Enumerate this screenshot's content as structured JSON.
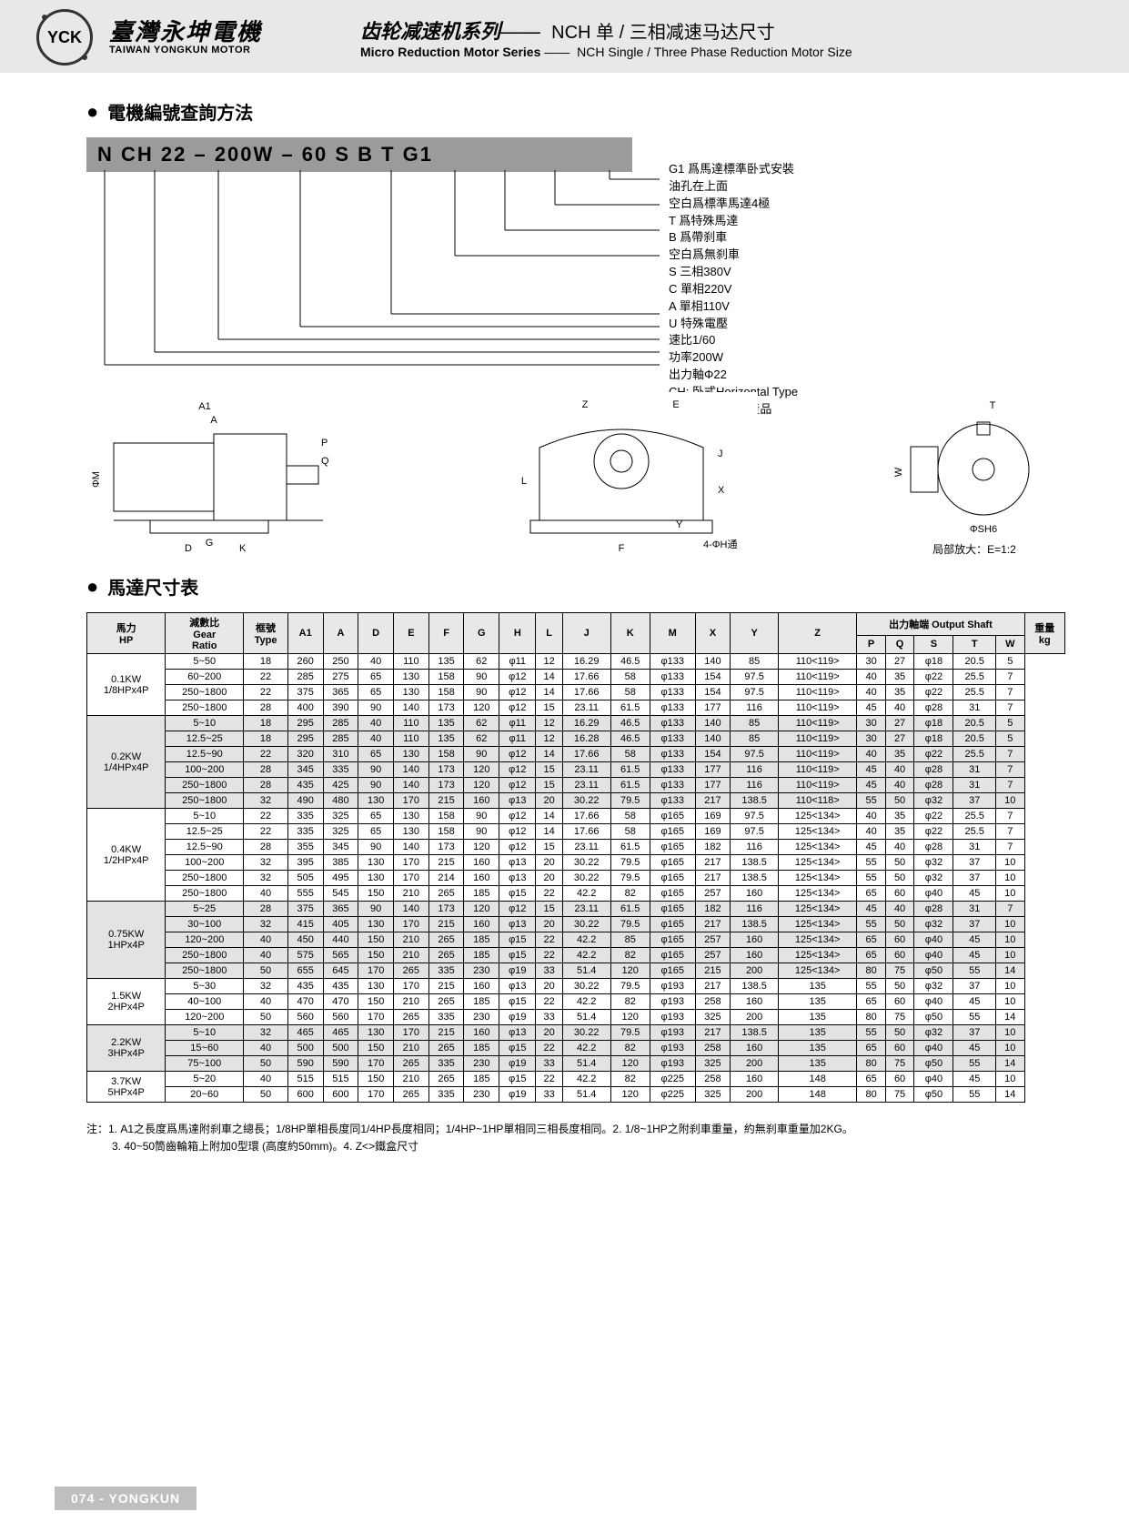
{
  "header": {
    "logo_text": "YCK",
    "company_cn": "臺灣永坤電機",
    "company_en": "TAIWAN YONGKUN MOTOR",
    "title_cn_main": "齿轮减速机系列",
    "title_cn_sub": "NCH 单 / 三相减速马达尺寸",
    "title_en_main": "Micro Reduction Motor Series",
    "title_en_sub": "NCH Single / Three Phase Reduction Motor Size"
  },
  "section1": {
    "heading": "電機編號查詢方法",
    "codebar": "N    CH   22 – 200W – 60    S    B    T    G1",
    "decodes": [
      "G1 爲馬達標準卧式安裝",
      "油孔在上面",
      "空白爲標準馬達4極",
      "T 爲特殊馬達",
      "B 爲帶刹車",
      "空白爲無刹車",
      "S 三相380V",
      "C 單相220V",
      "A 單相110V",
      "U 特殊電壓",
      "速比1/60",
      "功率200W",
      "出力軸Φ22",
      "CH: 卧式Horizontal Type",
      "標有N的爲新款産品"
    ]
  },
  "drawings": {
    "dim_labels_1": [
      "A1",
      "A",
      "P",
      "Q",
      "ΦM",
      "D",
      "K",
      "G"
    ],
    "dim_labels_2": [
      "Z",
      "E",
      "J",
      "X",
      "L",
      "Y",
      "F",
      "4-ΦH通"
    ],
    "dim_labels_3": [
      "T",
      "W",
      "ΦSH6"
    ],
    "caption_3": "局部放大：E=1:2"
  },
  "section2": {
    "heading": "馬達尺寸表"
  },
  "table": {
    "head_groups": {
      "hp": "馬力\nHP",
      "ratio": "減數比\nGear\nRatio",
      "type": "框號\nType",
      "output": "出力軸端 Output Shaft",
      "weight": "重量\nkg"
    },
    "cols": [
      "A1",
      "A",
      "D",
      "E",
      "F",
      "G",
      "H",
      "L",
      "J",
      "K",
      "M",
      "X",
      "Y",
      "Z",
      "P",
      "Q",
      "S",
      "T",
      "W"
    ],
    "groups": [
      {
        "hp": "0.1KW\n1/8HPx4P",
        "rows": [
          {
            "ratio": "5~50",
            "type": "18",
            "v": [
              "260",
              "250",
              "40",
              "110",
              "135",
              "62",
              "φ11",
              "12",
              "16.29",
              "46.5",
              "φ133",
              "140",
              "85",
              "110<119>",
              "30",
              "27",
              "φ18",
              "20.5",
              "5"
            ]
          },
          {
            "ratio": "60~200",
            "type": "22",
            "v": [
              "285",
              "275",
              "65",
              "130",
              "158",
              "90",
              "φ12",
              "14",
              "17.66",
              "58",
              "φ133",
              "154",
              "97.5",
              "110<119>",
              "40",
              "35",
              "φ22",
              "25.5",
              "7"
            ]
          },
          {
            "ratio": "250~1800",
            "type": "22",
            "v": [
              "375",
              "365",
              "65",
              "130",
              "158",
              "90",
              "φ12",
              "14",
              "17.66",
              "58",
              "φ133",
              "154",
              "97.5",
              "110<119>",
              "40",
              "35",
              "φ22",
              "25.5",
              "7"
            ]
          },
          {
            "ratio": "250~1800",
            "type": "28",
            "v": [
              "400",
              "390",
              "90",
              "140",
              "173",
              "120",
              "φ12",
              "15",
              "23.11",
              "61.5",
              "φ133",
              "177",
              "116",
              "110<119>",
              "45",
              "40",
              "φ28",
              "31",
              "7"
            ]
          }
        ]
      },
      {
        "hp": "0.2KW\n1/4HPx4P",
        "shade": true,
        "rows": [
          {
            "ratio": "5~10",
            "type": "18",
            "v": [
              "295",
              "285",
              "40",
              "110",
              "135",
              "62",
              "φ11",
              "12",
              "16.29",
              "46.5",
              "φ133",
              "140",
              "85",
              "110<119>",
              "30",
              "27",
              "φ18",
              "20.5",
              "5"
            ]
          },
          {
            "ratio": "12.5~25",
            "type": "18",
            "v": [
              "295",
              "285",
              "40",
              "110",
              "135",
              "62",
              "φ11",
              "12",
              "16.28",
              "46.5",
              "φ133",
              "140",
              "85",
              "110<119>",
              "30",
              "27",
              "φ18",
              "20.5",
              "5"
            ]
          },
          {
            "ratio": "12.5~90",
            "type": "22",
            "v": [
              "320",
              "310",
              "65",
              "130",
              "158",
              "90",
              "φ12",
              "14",
              "17.66",
              "58",
              "φ133",
              "154",
              "97.5",
              "110<119>",
              "40",
              "35",
              "φ22",
              "25.5",
              "7"
            ]
          },
          {
            "ratio": "100~200",
            "type": "28",
            "v": [
              "345",
              "335",
              "90",
              "140",
              "173",
              "120",
              "φ12",
              "15",
              "23.11",
              "61.5",
              "φ133",
              "177",
              "116",
              "110<119>",
              "45",
              "40",
              "φ28",
              "31",
              "7"
            ]
          },
          {
            "ratio": "250~1800",
            "type": "28",
            "v": [
              "435",
              "425",
              "90",
              "140",
              "173",
              "120",
              "φ12",
              "15",
              "23.11",
              "61.5",
              "φ133",
              "177",
              "116",
              "110<119>",
              "45",
              "40",
              "φ28",
              "31",
              "7"
            ]
          },
          {
            "ratio": "250~1800",
            "type": "32",
            "v": [
              "490",
              "480",
              "130",
              "170",
              "215",
              "160",
              "φ13",
              "20",
              "30.22",
              "79.5",
              "φ133",
              "217",
              "138.5",
              "110<118>",
              "55",
              "50",
              "φ32",
              "37",
              "10"
            ]
          }
        ]
      },
      {
        "hp": "0.4KW\n1/2HPx4P",
        "rows": [
          {
            "ratio": "5~10",
            "type": "22",
            "v": [
              "335",
              "325",
              "65",
              "130",
              "158",
              "90",
              "φ12",
              "14",
              "17.66",
              "58",
              "φ165",
              "169",
              "97.5",
              "125<134>",
              "40",
              "35",
              "φ22",
              "25.5",
              "7"
            ]
          },
          {
            "ratio": "12.5~25",
            "type": "22",
            "v": [
              "335",
              "325",
              "65",
              "130",
              "158",
              "90",
              "φ12",
              "14",
              "17.66",
              "58",
              "φ165",
              "169",
              "97.5",
              "125<134>",
              "40",
              "35",
              "φ22",
              "25.5",
              "7"
            ]
          },
          {
            "ratio": "12.5~90",
            "type": "28",
            "v": [
              "355",
              "345",
              "90",
              "140",
              "173",
              "120",
              "φ12",
              "15",
              "23.11",
              "61.5",
              "φ165",
              "182",
              "116",
              "125<134>",
              "45",
              "40",
              "φ28",
              "31",
              "7"
            ]
          },
          {
            "ratio": "100~200",
            "type": "32",
            "v": [
              "395",
              "385",
              "130",
              "170",
              "215",
              "160",
              "φ13",
              "20",
              "30.22",
              "79.5",
              "φ165",
              "217",
              "138.5",
              "125<134>",
              "55",
              "50",
              "φ32",
              "37",
              "10"
            ]
          },
          {
            "ratio": "250~1800",
            "type": "32",
            "v": [
              "505",
              "495",
              "130",
              "170",
              "214",
              "160",
              "φ13",
              "20",
              "30.22",
              "79.5",
              "φ165",
              "217",
              "138.5",
              "125<134>",
              "55",
              "50",
              "φ32",
              "37",
              "10"
            ]
          },
          {
            "ratio": "250~1800",
            "type": "40",
            "v": [
              "555",
              "545",
              "150",
              "210",
              "265",
              "185",
              "φ15",
              "22",
              "42.2",
              "82",
              "φ165",
              "257",
              "160",
              "125<134>",
              "65",
              "60",
              "φ40",
              "45",
              "10"
            ]
          }
        ]
      },
      {
        "hp": "0.75KW\n1HPx4P",
        "shade": true,
        "rows": [
          {
            "ratio": "5~25",
            "type": "28",
            "v": [
              "375",
              "365",
              "90",
              "140",
              "173",
              "120",
              "φ12",
              "15",
              "23.11",
              "61.5",
              "φ165",
              "182",
              "116",
              "125<134>",
              "45",
              "40",
              "φ28",
              "31",
              "7"
            ]
          },
          {
            "ratio": "30~100",
            "type": "32",
            "v": [
              "415",
              "405",
              "130",
              "170",
              "215",
              "160",
              "φ13",
              "20",
              "30.22",
              "79.5",
              "φ165",
              "217",
              "138.5",
              "125<134>",
              "55",
              "50",
              "φ32",
              "37",
              "10"
            ]
          },
          {
            "ratio": "120~200",
            "type": "40",
            "v": [
              "450",
              "440",
              "150",
              "210",
              "265",
              "185",
              "φ15",
              "22",
              "42.2",
              "85",
              "φ165",
              "257",
              "160",
              "125<134>",
              "65",
              "60",
              "φ40",
              "45",
              "10"
            ]
          },
          {
            "ratio": "250~1800",
            "type": "40",
            "v": [
              "575",
              "565",
              "150",
              "210",
              "265",
              "185",
              "φ15",
              "22",
              "42.2",
              "82",
              "φ165",
              "257",
              "160",
              "125<134>",
              "65",
              "60",
              "φ40",
              "45",
              "10"
            ]
          },
          {
            "ratio": "250~1800",
            "type": "50",
            "v": [
              "655",
              "645",
              "170",
              "265",
              "335",
              "230",
              "φ19",
              "33",
              "51.4",
              "120",
              "φ165",
              "215",
              "200",
              "125<134>",
              "80",
              "75",
              "φ50",
              "55",
              "14"
            ]
          }
        ]
      },
      {
        "hp": "1.5KW\n2HPx4P",
        "rows": [
          {
            "ratio": "5~30",
            "type": "32",
            "v": [
              "435",
              "435",
              "130",
              "170",
              "215",
              "160",
              "φ13",
              "20",
              "30.22",
              "79.5",
              "φ193",
              "217",
              "138.5",
              "135",
              "55",
              "50",
              "φ32",
              "37",
              "10"
            ]
          },
          {
            "ratio": "40~100",
            "type": "40",
            "v": [
              "470",
              "470",
              "150",
              "210",
              "265",
              "185",
              "φ15",
              "22",
              "42.2",
              "82",
              "φ193",
              "258",
              "160",
              "135",
              "65",
              "60",
              "φ40",
              "45",
              "10"
            ]
          },
          {
            "ratio": "120~200",
            "type": "50",
            "v": [
              "560",
              "560",
              "170",
              "265",
              "335",
              "230",
              "φ19",
              "33",
              "51.4",
              "120",
              "φ193",
              "325",
              "200",
              "135",
              "80",
              "75",
              "φ50",
              "55",
              "14"
            ]
          }
        ]
      },
      {
        "hp": "2.2KW\n3HPx4P",
        "shade": true,
        "rows": [
          {
            "ratio": "5~10",
            "type": "32",
            "v": [
              "465",
              "465",
              "130",
              "170",
              "215",
              "160",
              "φ13",
              "20",
              "30.22",
              "79.5",
              "φ193",
              "217",
              "138.5",
              "135",
              "55",
              "50",
              "φ32",
              "37",
              "10"
            ]
          },
          {
            "ratio": "15~60",
            "type": "40",
            "v": [
              "500",
              "500",
              "150",
              "210",
              "265",
              "185",
              "φ15",
              "22",
              "42.2",
              "82",
              "φ193",
              "258",
              "160",
              "135",
              "65",
              "60",
              "φ40",
              "45",
              "10"
            ]
          },
          {
            "ratio": "75~100",
            "type": "50",
            "v": [
              "590",
              "590",
              "170",
              "265",
              "335",
              "230",
              "φ19",
              "33",
              "51.4",
              "120",
              "φ193",
              "325",
              "200",
              "135",
              "80",
              "75",
              "φ50",
              "55",
              "14"
            ]
          }
        ]
      },
      {
        "hp": "3.7KW\n5HPx4P",
        "rows": [
          {
            "ratio": "5~20",
            "type": "40",
            "v": [
              "515",
              "515",
              "150",
              "210",
              "265",
              "185",
              "φ15",
              "22",
              "42.2",
              "82",
              "φ225",
              "258",
              "160",
              "148",
              "65",
              "60",
              "φ40",
              "45",
              "10"
            ]
          },
          {
            "ratio": "20~60",
            "type": "50",
            "v": [
              "600",
              "600",
              "170",
              "265",
              "335",
              "230",
              "φ19",
              "33",
              "51.4",
              "120",
              "φ225",
              "325",
              "200",
              "148",
              "80",
              "75",
              "φ50",
              "55",
              "14"
            ]
          }
        ]
      }
    ]
  },
  "notes": [
    "注：1. A1之長度爲馬達附刹車之總長；1/8HP單相長度同1/4HP長度相同；1/4HP~1HP單相同三相長度相同。2. 1/8~1HP之附刹車重量，約無刹車重量加2KG。",
    "3. 40~50筒齒輪箱上附加0型環 (高度約50mm)。4. Z<>鐵盒尺寸"
  ],
  "footer": "074 - YONGKUN",
  "colors": {
    "header_bg": "#e8e8e8",
    "codebar_bg": "#9b9b9b",
    "table_shade": "#e3e3e3",
    "footer_bg": "#bfbfbf",
    "text": "#000000"
  }
}
